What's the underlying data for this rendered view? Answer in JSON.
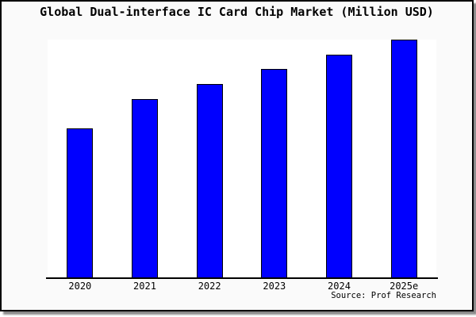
{
  "window": {
    "background": "#fafafa",
    "plot_background": "#ffffff",
    "border_color": "#000000",
    "shadow_color": "#8a8a8a",
    "axis_color": "#000000"
  },
  "chart_data": {
    "type": "bar",
    "title": "Global Dual-interface IC Card Chip Market (Million USD)",
    "categories": [
      "2020",
      "2021",
      "2022",
      "2023",
      "2024",
      "2025e"
    ],
    "values": [
      188,
      225,
      244,
      263,
      281,
      300
    ],
    "value_note": "No y-axis scale is shown in the image; values are relative bar heights in pixels (plot height = 300)",
    "xlabel": "",
    "ylabel": "",
    "ylim": [
      0,
      300
    ],
    "grid": false,
    "legend": null,
    "bar_color": "#0000ff",
    "bar_border_color": "#000000"
  },
  "footer": {
    "source": "Source: Prof Research"
  }
}
